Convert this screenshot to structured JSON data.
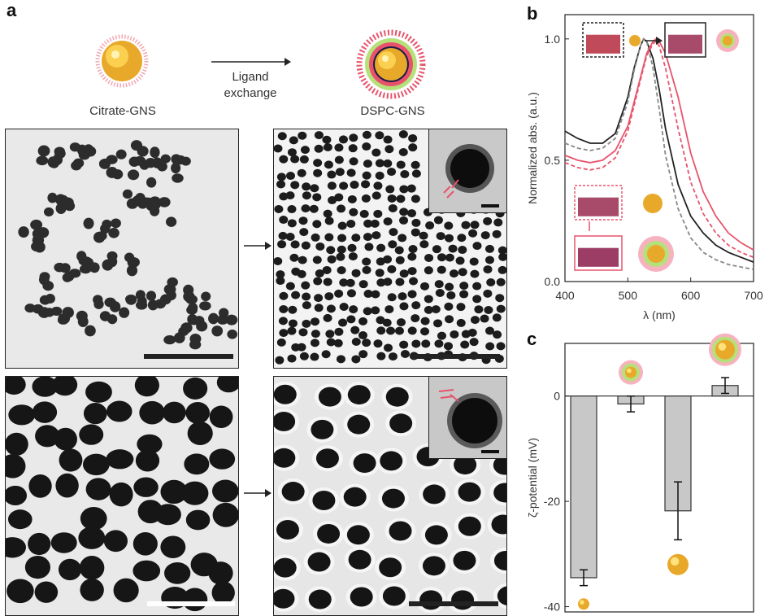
{
  "panels": {
    "a": "a",
    "b": "b",
    "c": "c"
  },
  "scheme": {
    "left_label": "Citrate-GNS",
    "right_label": "DSPC-GNS",
    "arrow_label_line1": "Ligand",
    "arrow_label_line2": "exchange"
  },
  "colors": {
    "gold": "#e8a92a",
    "pink": "#e8536b",
    "green": "#9bd06a",
    "gray_bar": "#c8c8c8"
  },
  "chart_data": [
    {
      "type": "line",
      "xlabel": "λ (nm)",
      "ylabel": "Normalized abs. (a.u.)",
      "xlim": [
        400,
        700
      ],
      "ylim": [
        0.0,
        1.1
      ],
      "xticks": [
        400,
        500,
        600,
        700
      ],
      "yticks": [
        "0.0",
        "0.5",
        "1.0"
      ],
      "series": [
        {
          "color": "#222222",
          "dash": "solid",
          "x": [
            400,
            420,
            440,
            460,
            480,
            500,
            510,
            520,
            525,
            530,
            540,
            550,
            560,
            580,
            600,
            620,
            640,
            660,
            680,
            700
          ],
          "y": [
            0.62,
            0.59,
            0.57,
            0.57,
            0.61,
            0.76,
            0.88,
            0.97,
            1.0,
            0.99,
            0.92,
            0.79,
            0.63,
            0.4,
            0.27,
            0.2,
            0.15,
            0.12,
            0.1,
            0.08
          ]
        },
        {
          "color": "#888888",
          "dash": "dashed",
          "x": [
            400,
            420,
            440,
            460,
            480,
            500,
            510,
            520,
            525,
            530,
            540,
            550,
            560,
            580,
            600,
            620,
            640,
            660,
            680,
            700
          ],
          "y": [
            0.57,
            0.55,
            0.54,
            0.55,
            0.59,
            0.74,
            0.87,
            0.97,
            1.0,
            0.99,
            0.88,
            0.71,
            0.52,
            0.3,
            0.18,
            0.12,
            0.09,
            0.07,
            0.06,
            0.05
          ]
        },
        {
          "color": "#e8536b",
          "dash": "dashed",
          "x": [
            400,
            420,
            440,
            460,
            480,
            500,
            520,
            530,
            540,
            545,
            550,
            560,
            580,
            600,
            620,
            640,
            660,
            680,
            700
          ],
          "y": [
            0.49,
            0.47,
            0.46,
            0.47,
            0.51,
            0.62,
            0.83,
            0.93,
            0.98,
            0.99,
            0.97,
            0.88,
            0.63,
            0.41,
            0.28,
            0.2,
            0.15,
            0.12,
            0.1
          ]
        },
        {
          "color": "#e8536b",
          "dash": "solid",
          "x": [
            400,
            420,
            440,
            460,
            480,
            500,
            520,
            530,
            540,
            545,
            550,
            560,
            580,
            600,
            620,
            640,
            660,
            680,
            700
          ],
          "y": [
            0.52,
            0.5,
            0.49,
            0.5,
            0.54,
            0.64,
            0.84,
            0.94,
            0.99,
            1.0,
            0.99,
            0.94,
            0.76,
            0.53,
            0.37,
            0.27,
            0.2,
            0.16,
            0.13
          ]
        }
      ]
    },
    {
      "type": "bar",
      "ylabel": "ζ-potential (mV)",
      "ylim": [
        -41,
        10
      ],
      "yticks": [
        0,
        -20,
        -40
      ],
      "values": [
        -34.5,
        -1.5,
        -21.8,
        2.0
      ],
      "errors": [
        1.5,
        1.5,
        5.5,
        1.5
      ]
    }
  ]
}
